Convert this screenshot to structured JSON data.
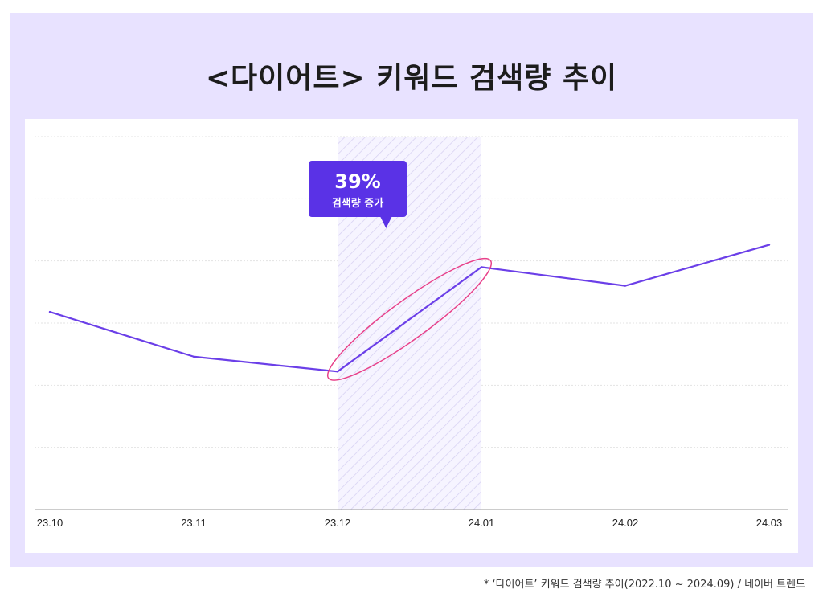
{
  "title": "<다이어트> 키워드 검색량 추이",
  "footnote": "* ‘다이어트’ 키워드 검색량 추이(2022.10 ~ 2024.09) / 네이버 트렌드",
  "colors": {
    "background": "#e8e2ff",
    "line": "#6b3fe8",
    "highlight_ellipse": "#e8418a",
    "callout": "#5a32e6",
    "hatch": "#d6d0f2",
    "gridline": "#d9d9d9"
  },
  "callout": {
    "value": "39%",
    "label": "검색량 증가"
  },
  "chart_data": {
    "type": "line",
    "categories": [
      "23.10",
      "23.11",
      "23.12",
      "24.01",
      "24.02",
      "24.03"
    ],
    "values": [
      53,
      41,
      37,
      65,
      60,
      71
    ],
    "ylim": [
      0,
      100
    ],
    "grid": true,
    "highlight": {
      "from": "23.12",
      "to": "24.01"
    }
  }
}
